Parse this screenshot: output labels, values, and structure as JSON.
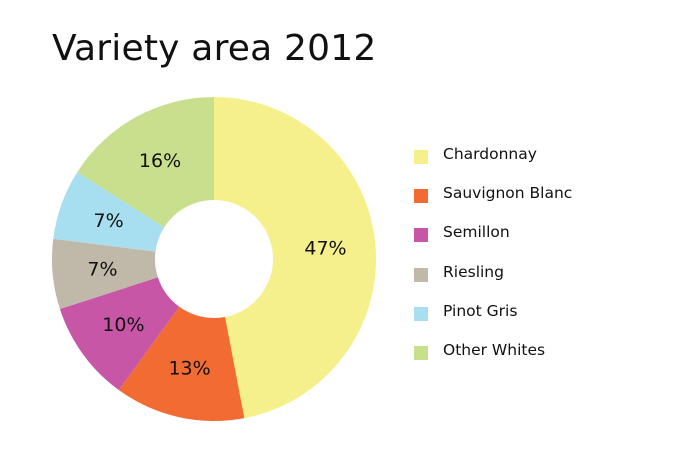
{
  "title": "Variety area 2012",
  "chart_data": {
    "type": "pie",
    "title": "Variety area 2012",
    "legend_position": "right",
    "categories": [
      "Chardonnay",
      "Sauvignon Blanc",
      "Semillon",
      "Riesling",
      "Pinot Gris",
      "Other Whites"
    ],
    "values": [
      47,
      13,
      10,
      7,
      7,
      16
    ],
    "value_labels": [
      "47%",
      "13%",
      "10%",
      "7%",
      "7%",
      "16%"
    ],
    "colors": [
      "#f5f08c",
      "#f26b33",
      "#c856a6",
      "#c0b8a8",
      "#a8dff0",
      "#c8e08e"
    ]
  }
}
